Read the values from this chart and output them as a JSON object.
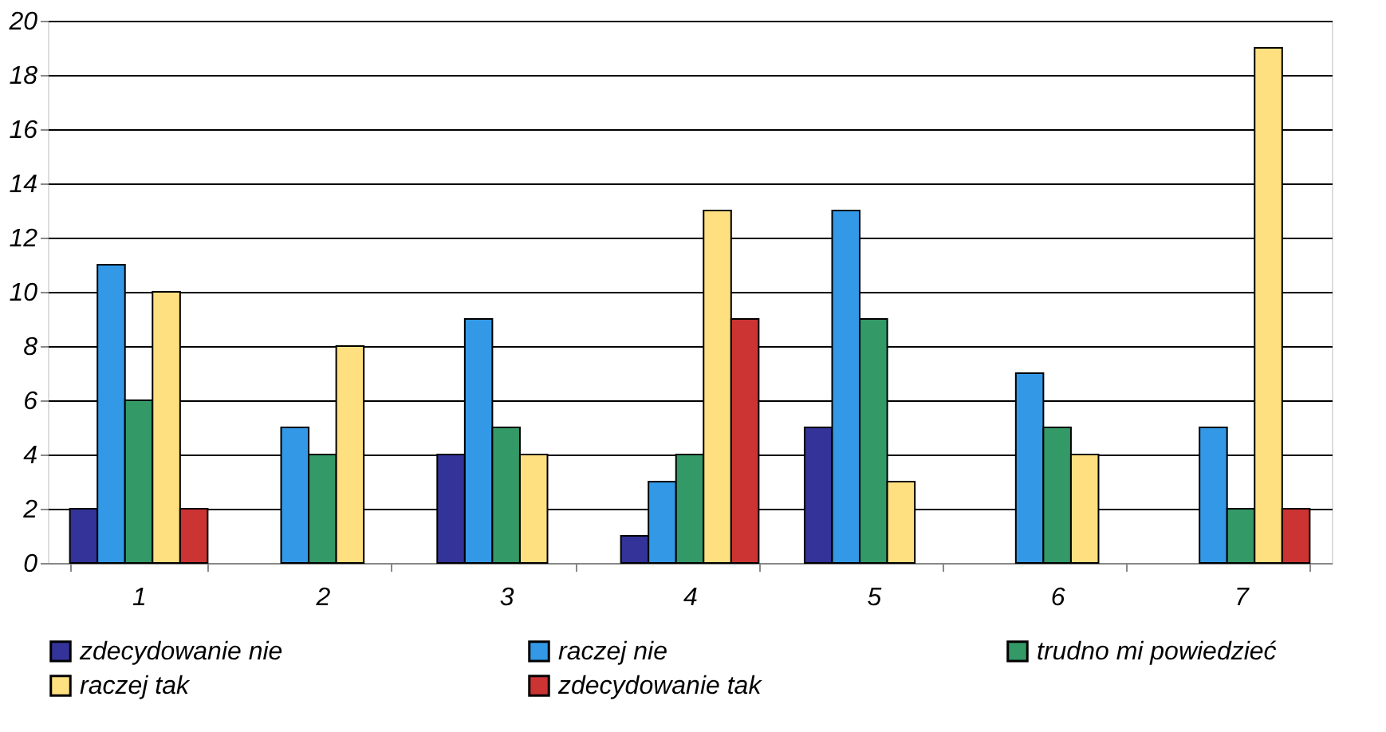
{
  "chart_data": {
    "type": "bar",
    "categories": [
      "1",
      "2",
      "3",
      "4",
      "5",
      "6",
      "7"
    ],
    "series": [
      {
        "name": "zdecydowanie nie",
        "color": "#333399",
        "values": [
          2,
          null,
          4,
          1,
          5,
          null,
          null
        ]
      },
      {
        "name": "raczej nie",
        "color": "#3399e6",
        "values": [
          11,
          5,
          9,
          3,
          13,
          7,
          5
        ]
      },
      {
        "name": "trudno mi powiedzieć",
        "color": "#339966",
        "values": [
          6,
          4,
          5,
          4,
          9,
          5,
          2
        ]
      },
      {
        "name": "raczej tak",
        "color": "#ffe080",
        "values": [
          10,
          8,
          4,
          13,
          3,
          4,
          19
        ]
      },
      {
        "name": "zdecydowanie tak",
        "color": "#cc3333",
        "values": [
          2,
          null,
          null,
          9,
          null,
          null,
          2
        ]
      }
    ],
    "ylim": [
      0,
      20
    ],
    "yticks": [
      0,
      2,
      4,
      6,
      8,
      10,
      12,
      14,
      16,
      18,
      20
    ],
    "grid": "y",
    "legend": "bottom"
  }
}
